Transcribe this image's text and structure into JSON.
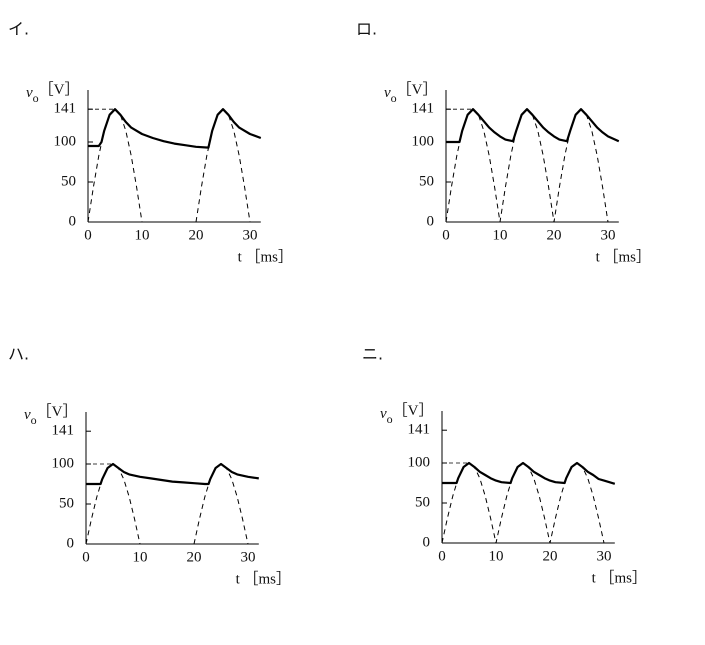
{
  "chart_data": [
    {
      "type": "line",
      "title": "イ.",
      "y_label": {
        "symbol": "v",
        "subscript": "o",
        "unit": "［V］"
      },
      "x_label": "t ［ms］",
      "xlim": [
        0,
        32
      ],
      "ylim": [
        0,
        165
      ],
      "xticks": [
        0,
        10,
        20,
        30
      ],
      "yticks": [
        0,
        50,
        100,
        141
      ],
      "ref_line": 141,
      "series": [
        {
          "style": "solid",
          "color": "#000000",
          "x": [
            0,
            2,
            2.5,
            3,
            4,
            5,
            6,
            7,
            8,
            10,
            12,
            14,
            16,
            18,
            20,
            22.3,
            23,
            24,
            25,
            26,
            27,
            28,
            30,
            32
          ],
          "values": [
            95,
            95,
            100,
            114,
            134,
            141,
            134,
            125,
            118,
            110,
            105,
            101,
            98,
            96,
            94,
            93,
            114,
            134,
            141,
            134,
            125,
            118,
            110,
            105
          ]
        },
        {
          "style": "dashed",
          "color": "#000000",
          "x": [
            0,
            1,
            2,
            3,
            4,
            5,
            6,
            7,
            8,
            9,
            10,
            15,
            20,
            21,
            22,
            23,
            24,
            25,
            26,
            27,
            28,
            29,
            30
          ],
          "values": [
            0,
            43.6,
            82.9,
            114.1,
            134.1,
            141,
            134.1,
            114.1,
            82.9,
            43.6,
            0,
            null,
            0,
            43.6,
            82.9,
            114.1,
            134.1,
            141,
            134.1,
            114.1,
            82.9,
            43.6,
            0
          ]
        }
      ]
    },
    {
      "type": "line",
      "title": "ロ.",
      "y_label": {
        "symbol": "v",
        "subscript": "o",
        "unit": "［V］"
      },
      "x_label": "t ［ms］",
      "xlim": [
        0,
        32
      ],
      "ylim": [
        0,
        165
      ],
      "xticks": [
        0,
        10,
        20,
        30
      ],
      "yticks": [
        0,
        50,
        100,
        141
      ],
      "ref_line": 141,
      "series": [
        {
          "style": "solid",
          "color": "#000000",
          "x": [
            0,
            2.5,
            3,
            4,
            5,
            6,
            7,
            8,
            9,
            10,
            11,
            12.4,
            13,
            14,
            15,
            16,
            17,
            18,
            19,
            20,
            21,
            22.4,
            23,
            24,
            25,
            26,
            27,
            28,
            29,
            30,
            32
          ],
          "values": [
            100,
            100,
            114,
            134,
            141,
            134,
            126,
            118,
            112,
            107,
            103,
            101,
            114,
            134,
            141,
            134,
            126,
            118,
            112,
            107,
            103,
            101,
            114,
            134,
            141,
            134,
            126,
            118,
            112,
            107,
            101
          ]
        },
        {
          "style": "dashed",
          "color": "#000000",
          "x": [
            0,
            1,
            2,
            3,
            4,
            5,
            6,
            7,
            8,
            9,
            10,
            11,
            12,
            13,
            14,
            15,
            16,
            17,
            18,
            19,
            20,
            21,
            22,
            23,
            24,
            25,
            26,
            27,
            28,
            29,
            30
          ],
          "values": [
            0,
            43.6,
            82.9,
            114.1,
            134.1,
            141,
            134.1,
            114.1,
            82.9,
            43.6,
            0,
            43.6,
            82.9,
            114.1,
            134.1,
            141,
            134.1,
            114.1,
            82.9,
            43.6,
            0,
            43.6,
            82.9,
            114.1,
            134.1,
            141,
            134.1,
            114.1,
            82.9,
            43.6,
            0
          ]
        }
      ]
    },
    {
      "type": "line",
      "title": "ハ.",
      "y_label": {
        "symbol": "v",
        "subscript": "o",
        "unit": "［V］"
      },
      "x_label": "t ［ms］",
      "xlim": [
        0,
        32
      ],
      "ylim": [
        0,
        165
      ],
      "xticks": [
        0,
        10,
        20,
        30
      ],
      "yticks": [
        0,
        50,
        100,
        141
      ],
      "ref_line": 100,
      "series": [
        {
          "style": "solid",
          "color": "#000000",
          "x": [
            0,
            2,
            2.7,
            3,
            4,
            5,
            6,
            7,
            8,
            10,
            12,
            14,
            16,
            18,
            20,
            22,
            22.7,
            23,
            24,
            25,
            26,
            27,
            28,
            30,
            32
          ],
          "values": [
            75,
            75,
            75,
            81,
            95,
            100,
            95,
            90,
            87,
            84,
            82,
            80,
            78,
            77,
            76,
            75,
            75,
            81,
            95,
            100,
            95,
            90,
            87,
            84,
            82
          ]
        },
        {
          "style": "dashed",
          "color": "#000000",
          "x": [
            0,
            1,
            2,
            3,
            4,
            5,
            6,
            7,
            8,
            9,
            10,
            15,
            20,
            21,
            22,
            23,
            24,
            25,
            26,
            27,
            28,
            29,
            30
          ],
          "values": [
            0,
            30.9,
            58.8,
            80.9,
            95.1,
            100,
            95.1,
            80.9,
            58.8,
            30.9,
            0,
            null,
            0,
            30.9,
            58.8,
            80.9,
            95.1,
            100,
            95.1,
            80.9,
            58.8,
            30.9,
            0
          ]
        }
      ]
    },
    {
      "type": "line",
      "title": "ニ.",
      "y_label": {
        "symbol": "v",
        "subscript": "o",
        "unit": "［V］"
      },
      "x_label": "t ［ms］",
      "xlim": [
        0,
        32
      ],
      "ylim": [
        0,
        165
      ],
      "xticks": [
        0,
        10,
        20,
        30
      ],
      "yticks": [
        0,
        50,
        100,
        141
      ],
      "ref_line": 100,
      "series": [
        {
          "style": "solid",
          "color": "#000000",
          "x": [
            0,
            2.7,
            3,
            4,
            5,
            6,
            7,
            8,
            9,
            10,
            11,
            12.7,
            13,
            14,
            15,
            16,
            17,
            18,
            19,
            20,
            21,
            22.7,
            23,
            24,
            25,
            26,
            27,
            28,
            29,
            30,
            32
          ],
          "values": [
            75,
            75,
            81,
            95,
            100,
            95,
            89,
            85,
            81,
            78,
            76,
            75,
            81,
            95,
            100,
            95,
            89,
            85,
            81,
            78,
            76,
            75,
            81,
            95,
            100,
            95,
            89,
            85,
            80,
            78,
            74
          ]
        },
        {
          "style": "dashed",
          "color": "#000000",
          "x": [
            0,
            1,
            2,
            3,
            4,
            5,
            6,
            7,
            8,
            9,
            10,
            11,
            12,
            13,
            14,
            15,
            16,
            17,
            18,
            19,
            20,
            21,
            22,
            23,
            24,
            25,
            26,
            27,
            28,
            29,
            30
          ],
          "values": [
            0,
            30.9,
            58.8,
            80.9,
            95.1,
            100,
            95.1,
            80.9,
            58.8,
            30.9,
            0,
            30.9,
            58.8,
            80.9,
            95.1,
            100,
            95.1,
            80.9,
            58.8,
            30.9,
            0,
            30.9,
            58.8,
            80.9,
            95.1,
            100,
            95.1,
            80.9,
            58.8,
            30.9,
            0
          ]
        }
      ]
    }
  ]
}
